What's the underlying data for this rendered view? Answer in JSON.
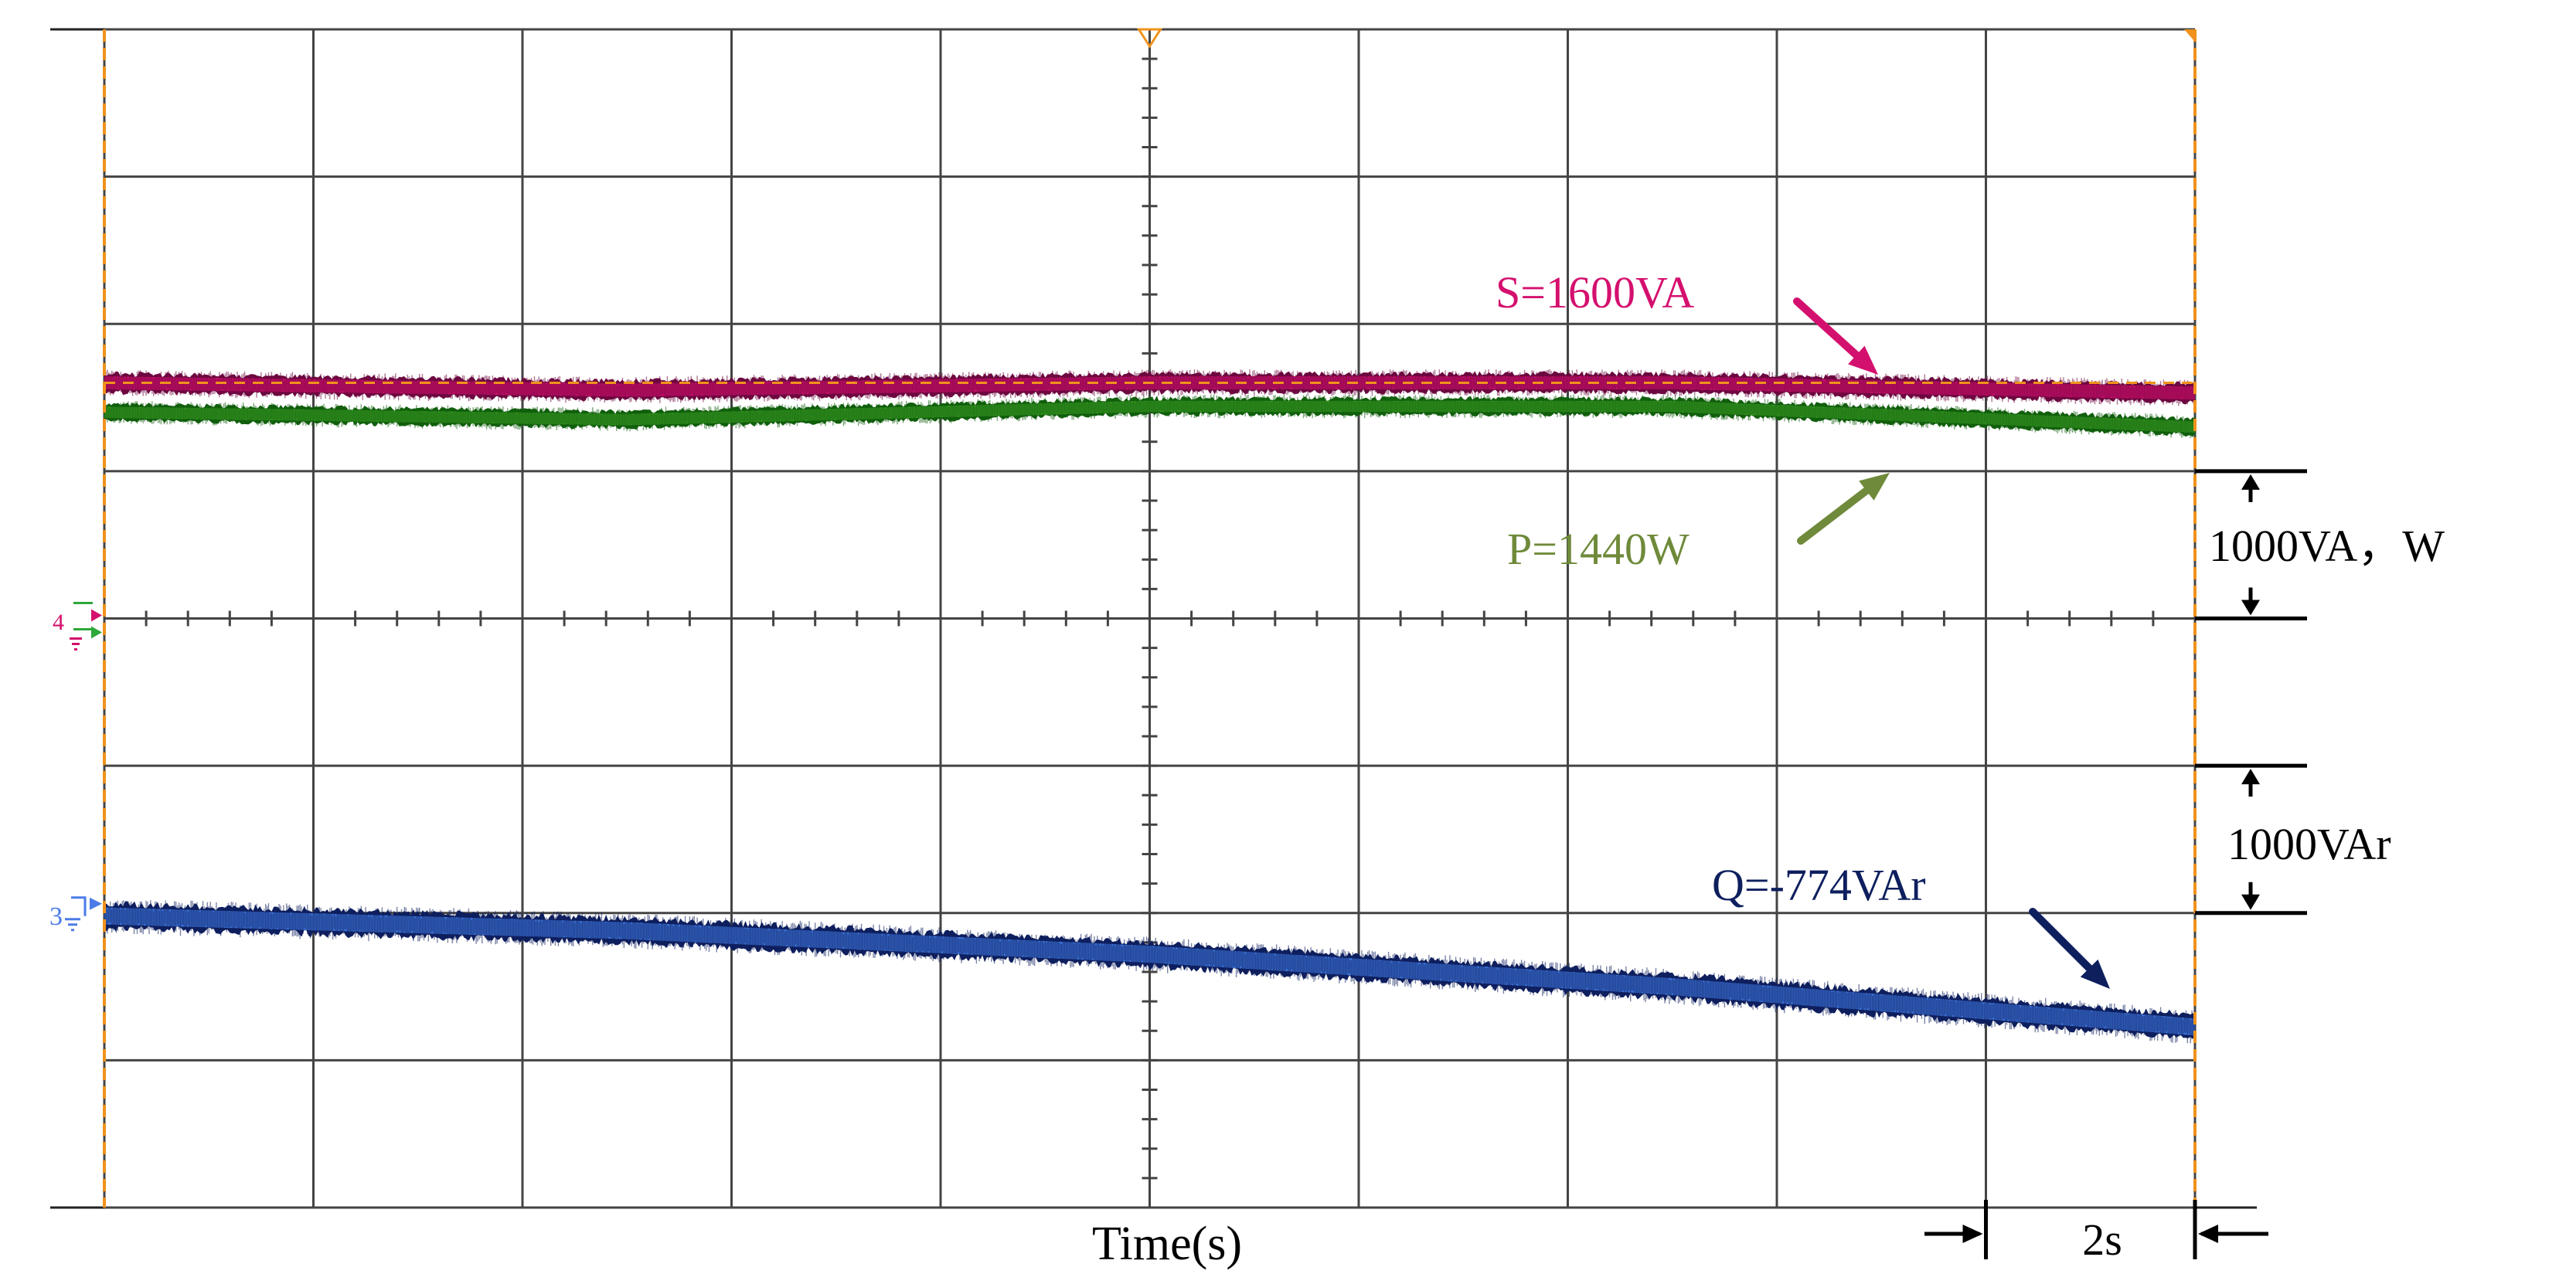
{
  "chart_data": {
    "type": "line",
    "title": "",
    "xlabel": "Time(s)",
    "ylabel": "",
    "grid": true,
    "time_per_division": "2s",
    "x_divisions": 10,
    "y_divisions": 8,
    "xlim": [
      0,
      20
    ],
    "x_unit": "s",
    "series": [
      {
        "name": "S",
        "label": "S=1600VA",
        "channel": "4",
        "color": "#d4106e",
        "dark_color": "#6e0840",
        "unit": "VA",
        "scale_per_div": "1000VA",
        "x": [
          0,
          5,
          10,
          15,
          20
        ],
        "values": [
          1600,
          1550,
          1600,
          1600,
          1530
        ],
        "noise_band": 160
      },
      {
        "name": "P",
        "label": "P=1440W",
        "channel": "4",
        "color": "#3a9a22",
        "dark_color": "#115f0d",
        "unit": "W",
        "scale_per_div": "1000W",
        "x": [
          0,
          5,
          10,
          15,
          20
        ],
        "values": [
          1400,
          1350,
          1440,
          1440,
          1300
        ],
        "noise_band": 140
      },
      {
        "name": "Q",
        "label": "Q=-774VAr",
        "channel": "3",
        "color": "#3f79e0",
        "dark_color": "#0e1f5e",
        "unit": "VAr",
        "scale_per_div": "1000VAr",
        "x": [
          0,
          5,
          10,
          15,
          20
        ],
        "values": [
          -20,
          -120,
          -280,
          -500,
          -774
        ],
        "noise_band": 210
      }
    ],
    "annotations": [
      "S=1600VA",
      "P=1440W",
      "Q=-774VAr"
    ],
    "scale_markers": [
      "1000VA，W",
      "1000VAr",
      "2s"
    ]
  },
  "channel_markers": {
    "power_channel": "4",
    "reactive_channel": "3"
  },
  "colors": {
    "grid": "#444444",
    "cursor": "#f0921c",
    "s_label": "#d4106e",
    "p_label": "#6f8a3a",
    "q_label": "#0e1f5e",
    "power_marker": "#d4106e",
    "reactive_marker": "#4b7be8",
    "green_marker": "#2ea83a"
  }
}
